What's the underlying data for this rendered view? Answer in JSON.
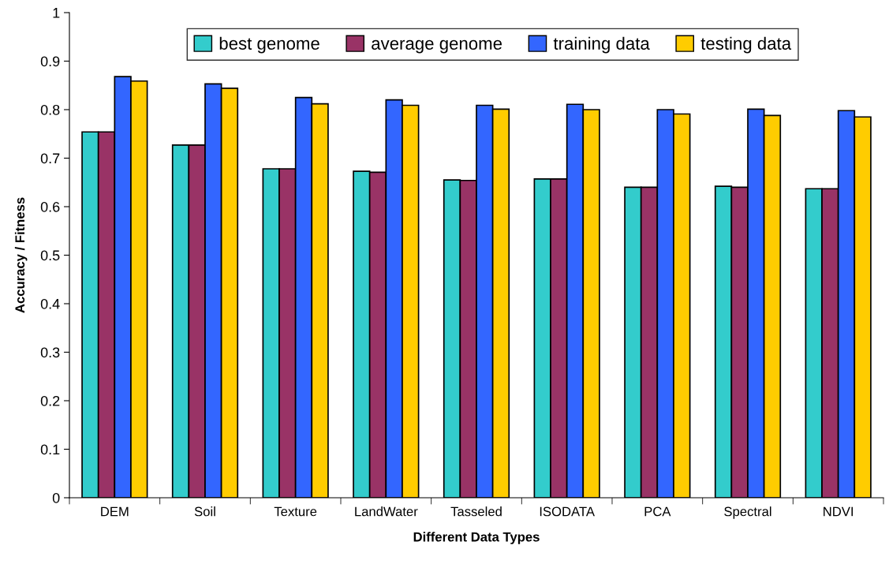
{
  "chart_data": {
    "type": "bar",
    "xlabel": "Different Data Types",
    "ylabel": "Accuracy / Fitness",
    "categories": [
      "DEM",
      "Soil",
      "Texture",
      "LandWater",
      "Tasseled",
      "ISODATA",
      "PCA",
      "Spectral",
      "NDVI"
    ],
    "series": [
      {
        "name": "best genome",
        "color": "#33cccc",
        "values": [
          0.754,
          0.727,
          0.678,
          0.673,
          0.655,
          0.657,
          0.64,
          0.642,
          0.637
        ]
      },
      {
        "name": "average genome",
        "color": "#993366",
        "values": [
          0.754,
          0.727,
          0.678,
          0.671,
          0.654,
          0.657,
          0.64,
          0.64,
          0.637
        ]
      },
      {
        "name": "training data",
        "color": "#3366ff",
        "values": [
          0.868,
          0.853,
          0.825,
          0.82,
          0.809,
          0.811,
          0.8,
          0.801,
          0.798
        ]
      },
      {
        "name": "testing data",
        "color": "#ffcc00",
        "values": [
          0.859,
          0.844,
          0.812,
          0.809,
          0.801,
          0.8,
          0.791,
          0.788,
          0.785
        ]
      }
    ],
    "ylim": [
      0,
      1
    ],
    "yticks": [
      0,
      0.1,
      0.2,
      0.3,
      0.4,
      0.5,
      0.6,
      0.7,
      0.8,
      0.9,
      1
    ],
    "grid": false,
    "legend": "top"
  }
}
